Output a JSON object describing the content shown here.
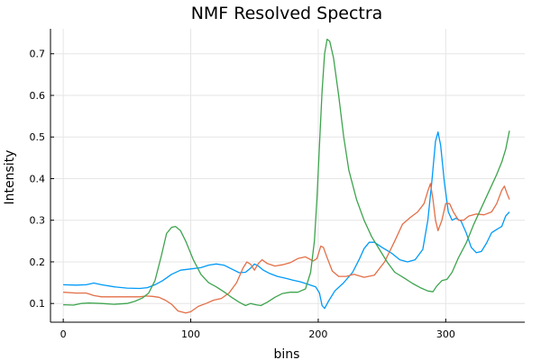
{
  "chart_data": {
    "type": "line",
    "title": "NMF Resolved Spectra",
    "xlabel": "bins",
    "ylabel": "Intensity",
    "xlim": [
      -10,
      362
    ],
    "ylim": [
      0.055,
      0.76
    ],
    "xticks": [
      0,
      100,
      200,
      300
    ],
    "yticks": [
      0.1,
      0.2,
      0.3,
      0.4,
      0.5,
      0.6,
      0.7
    ],
    "grid": true,
    "legend": "none",
    "series": [
      {
        "color": "#009AF9",
        "points": [
          [
            0,
            0.145
          ],
          [
            10,
            0.144
          ],
          [
            18,
            0.145
          ],
          [
            24,
            0.149
          ],
          [
            30,
            0.145
          ],
          [
            40,
            0.14
          ],
          [
            50,
            0.137
          ],
          [
            60,
            0.136
          ],
          [
            66,
            0.138
          ],
          [
            72,
            0.145
          ],
          [
            78,
            0.155
          ],
          [
            85,
            0.17
          ],
          [
            92,
            0.18
          ],
          [
            100,
            0.183
          ],
          [
            108,
            0.186
          ],
          [
            114,
            0.192
          ],
          [
            120,
            0.195
          ],
          [
            126,
            0.192
          ],
          [
            132,
            0.183
          ],
          [
            138,
            0.174
          ],
          [
            143,
            0.175
          ],
          [
            147,
            0.185
          ],
          [
            150,
            0.195
          ],
          [
            153,
            0.19
          ],
          [
            157,
            0.18
          ],
          [
            162,
            0.172
          ],
          [
            168,
            0.165
          ],
          [
            175,
            0.16
          ],
          [
            180,
            0.156
          ],
          [
            186,
            0.152
          ],
          [
            192,
            0.146
          ],
          [
            198,
            0.14
          ],
          [
            201,
            0.125
          ],
          [
            203,
            0.095
          ],
          [
            205,
            0.088
          ],
          [
            208,
            0.105
          ],
          [
            213,
            0.13
          ],
          [
            220,
            0.15
          ],
          [
            227,
            0.175
          ],
          [
            232,
            0.205
          ],
          [
            236,
            0.232
          ],
          [
            240,
            0.247
          ],
          [
            244,
            0.247
          ],
          [
            250,
            0.235
          ],
          [
            258,
            0.22
          ],
          [
            264,
            0.205
          ],
          [
            270,
            0.2
          ],
          [
            276,
            0.205
          ],
          [
            282,
            0.23
          ],
          [
            286,
            0.3
          ],
          [
            289,
            0.39
          ],
          [
            292,
            0.49
          ],
          [
            294,
            0.512
          ],
          [
            296,
            0.48
          ],
          [
            299,
            0.39
          ],
          [
            302,
            0.32
          ],
          [
            305,
            0.3
          ],
          [
            308,
            0.305
          ],
          [
            312,
            0.298
          ],
          [
            316,
            0.27
          ],
          [
            320,
            0.235
          ],
          [
            324,
            0.222
          ],
          [
            328,
            0.225
          ],
          [
            332,
            0.245
          ],
          [
            336,
            0.27
          ],
          [
            340,
            0.278
          ],
          [
            344,
            0.285
          ],
          [
            347,
            0.31
          ],
          [
            350,
            0.32
          ]
        ]
      },
      {
        "color": "#E36F47",
        "points": [
          [
            0,
            0.127
          ],
          [
            10,
            0.125
          ],
          [
            18,
            0.125
          ],
          [
            24,
            0.119
          ],
          [
            30,
            0.116
          ],
          [
            40,
            0.116
          ],
          [
            50,
            0.116
          ],
          [
            60,
            0.116
          ],
          [
            65,
            0.118
          ],
          [
            70,
            0.117
          ],
          [
            75,
            0.115
          ],
          [
            80,
            0.108
          ],
          [
            85,
            0.098
          ],
          [
            90,
            0.082
          ],
          [
            96,
            0.077
          ],
          [
            100,
            0.08
          ],
          [
            106,
            0.093
          ],
          [
            112,
            0.1
          ],
          [
            118,
            0.108
          ],
          [
            124,
            0.112
          ],
          [
            130,
            0.125
          ],
          [
            136,
            0.15
          ],
          [
            141,
            0.185
          ],
          [
            144,
            0.2
          ],
          [
            147,
            0.194
          ],
          [
            150,
            0.18
          ],
          [
            153,
            0.196
          ],
          [
            156,
            0.205
          ],
          [
            160,
            0.196
          ],
          [
            166,
            0.19
          ],
          [
            172,
            0.193
          ],
          [
            178,
            0.198
          ],
          [
            184,
            0.208
          ],
          [
            190,
            0.212
          ],
          [
            196,
            0.202
          ],
          [
            199,
            0.208
          ],
          [
            202,
            0.238
          ],
          [
            204,
            0.235
          ],
          [
            207,
            0.21
          ],
          [
            211,
            0.178
          ],
          [
            216,
            0.165
          ],
          [
            222,
            0.165
          ],
          [
            228,
            0.17
          ],
          [
            236,
            0.163
          ],
          [
            244,
            0.168
          ],
          [
            252,
            0.2
          ],
          [
            260,
            0.25
          ],
          [
            266,
            0.29
          ],
          [
            272,
            0.306
          ],
          [
            278,
            0.32
          ],
          [
            283,
            0.34
          ],
          [
            286,
            0.37
          ],
          [
            288,
            0.388
          ],
          [
            290,
            0.35
          ],
          [
            292,
            0.3
          ],
          [
            294,
            0.275
          ],
          [
            297,
            0.3
          ],
          [
            300,
            0.34
          ],
          [
            303,
            0.34
          ],
          [
            306,
            0.32
          ],
          [
            310,
            0.3
          ],
          [
            314,
            0.3
          ],
          [
            318,
            0.31
          ],
          [
            324,
            0.315
          ],
          [
            330,
            0.313
          ],
          [
            336,
            0.32
          ],
          [
            340,
            0.34
          ],
          [
            344,
            0.372
          ],
          [
            346,
            0.382
          ],
          [
            348,
            0.365
          ],
          [
            350,
            0.35
          ]
        ]
      },
      {
        "color": "#3EA44E",
        "points": [
          [
            0,
            0.097
          ],
          [
            8,
            0.096
          ],
          [
            14,
            0.1
          ],
          [
            20,
            0.101
          ],
          [
            30,
            0.1
          ],
          [
            40,
            0.098
          ],
          [
            50,
            0.1
          ],
          [
            56,
            0.105
          ],
          [
            62,
            0.113
          ],
          [
            67,
            0.125
          ],
          [
            72,
            0.155
          ],
          [
            77,
            0.215
          ],
          [
            81,
            0.268
          ],
          [
            85,
            0.283
          ],
          [
            88,
            0.285
          ],
          [
            92,
            0.275
          ],
          [
            96,
            0.25
          ],
          [
            102,
            0.205
          ],
          [
            108,
            0.17
          ],
          [
            114,
            0.15
          ],
          [
            120,
            0.14
          ],
          [
            126,
            0.128
          ],
          [
            132,
            0.115
          ],
          [
            138,
            0.103
          ],
          [
            143,
            0.095
          ],
          [
            147,
            0.1
          ],
          [
            151,
            0.097
          ],
          [
            155,
            0.095
          ],
          [
            160,
            0.103
          ],
          [
            166,
            0.115
          ],
          [
            172,
            0.124
          ],
          [
            178,
            0.127
          ],
          [
            184,
            0.127
          ],
          [
            190,
            0.135
          ],
          [
            194,
            0.175
          ],
          [
            197,
            0.25
          ],
          [
            199,
            0.35
          ],
          [
            201,
            0.48
          ],
          [
            203,
            0.61
          ],
          [
            205,
            0.7
          ],
          [
            207,
            0.735
          ],
          [
            209,
            0.73
          ],
          [
            212,
            0.69
          ],
          [
            216,
            0.6
          ],
          [
            220,
            0.5
          ],
          [
            224,
            0.42
          ],
          [
            230,
            0.35
          ],
          [
            236,
            0.3
          ],
          [
            242,
            0.26
          ],
          [
            248,
            0.23
          ],
          [
            254,
            0.2
          ],
          [
            260,
            0.175
          ],
          [
            268,
            0.16
          ],
          [
            274,
            0.148
          ],
          [
            280,
            0.138
          ],
          [
            286,
            0.13
          ],
          [
            290,
            0.128
          ],
          [
            293,
            0.142
          ],
          [
            297,
            0.155
          ],
          [
            301,
            0.158
          ],
          [
            305,
            0.175
          ],
          [
            310,
            0.21
          ],
          [
            316,
            0.245
          ],
          [
            322,
            0.29
          ],
          [
            328,
            0.33
          ],
          [
            334,
            0.37
          ],
          [
            340,
            0.41
          ],
          [
            344,
            0.44
          ],
          [
            347,
            0.47
          ],
          [
            350,
            0.515
          ]
        ]
      }
    ]
  }
}
